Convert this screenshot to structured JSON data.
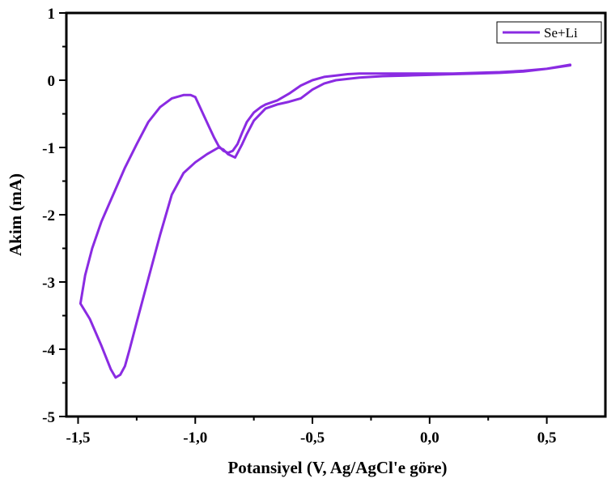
{
  "chart_data": {
    "type": "line",
    "title": "",
    "xlabel": "Potansiyel (V, Ag/AgCl'e göre)",
    "ylabel": "Akim (mA)",
    "xlim": [
      -1.55,
      0.75
    ],
    "ylim": [
      -5,
      1
    ],
    "xticks": [
      -1.5,
      -1.0,
      -0.5,
      0.0,
      0.5
    ],
    "xtick_labels": [
      "-1,5",
      "-1,0",
      "-0,5",
      "0,0",
      "0,5"
    ],
    "yticks": [
      -5,
      -4,
      -3,
      -2,
      -1,
      0,
      1
    ],
    "ytick_labels": [
      "-5",
      "-4",
      "-3",
      "-2",
      "-1",
      "0",
      "1"
    ],
    "legend_position": "top-right",
    "grid": false,
    "series": [
      {
        "name": "Se+Li",
        "color": "#8a2be2",
        "x": [
          0.6,
          0.5,
          0.4,
          0.3,
          0.2,
          0.1,
          0.0,
          -0.1,
          -0.2,
          -0.3,
          -0.4,
          -0.45,
          -0.5,
          -0.55,
          -0.6,
          -0.65,
          -0.7,
          -0.75,
          -0.78,
          -0.8,
          -0.83,
          -0.86,
          -0.88,
          -0.9,
          -0.95,
          -1.0,
          -1.05,
          -1.1,
          -1.15,
          -1.2,
          -1.25,
          -1.28,
          -1.3,
          -1.32,
          -1.34,
          -1.36,
          -1.4,
          -1.45,
          -1.49,
          -1.47,
          -1.44,
          -1.4,
          -1.35,
          -1.3,
          -1.25,
          -1.2,
          -1.15,
          -1.1,
          -1.05,
          -1.02,
          -1.0,
          -0.98,
          -0.96,
          -0.94,
          -0.92,
          -0.9,
          -0.88,
          -0.86,
          -0.84,
          -0.82,
          -0.8,
          -0.78,
          -0.75,
          -0.72,
          -0.7,
          -0.65,
          -0.6,
          -0.55,
          -0.5,
          -0.45,
          -0.4,
          -0.35,
          -0.3,
          -0.2,
          -0.1,
          0.0,
          0.1,
          0.2,
          0.3,
          0.4,
          0.5,
          0.6
        ],
        "y": [
          0.23,
          0.17,
          0.13,
          0.11,
          0.1,
          0.09,
          0.08,
          0.07,
          0.06,
          0.04,
          0.0,
          -0.05,
          -0.14,
          -0.27,
          -0.32,
          -0.36,
          -0.42,
          -0.6,
          -0.8,
          -0.95,
          -1.15,
          -1.1,
          -1.03,
          -1.0,
          -1.1,
          -1.22,
          -1.38,
          -1.7,
          -2.3,
          -2.95,
          -3.6,
          -4.0,
          -4.25,
          -4.38,
          -4.42,
          -4.3,
          -3.95,
          -3.55,
          -3.32,
          -2.9,
          -2.5,
          -2.1,
          -1.7,
          -1.3,
          -0.95,
          -0.62,
          -0.4,
          -0.27,
          -0.22,
          -0.22,
          -0.25,
          -0.4,
          -0.55,
          -0.7,
          -0.85,
          -0.98,
          -1.05,
          -1.08,
          -1.05,
          -0.95,
          -0.78,
          -0.62,
          -0.48,
          -0.4,
          -0.36,
          -0.3,
          -0.2,
          -0.08,
          0.0,
          0.05,
          0.07,
          0.09,
          0.1,
          0.1,
          0.1,
          0.1,
          0.1,
          0.11,
          0.12,
          0.14,
          0.17,
          0.22
        ]
      }
    ]
  }
}
